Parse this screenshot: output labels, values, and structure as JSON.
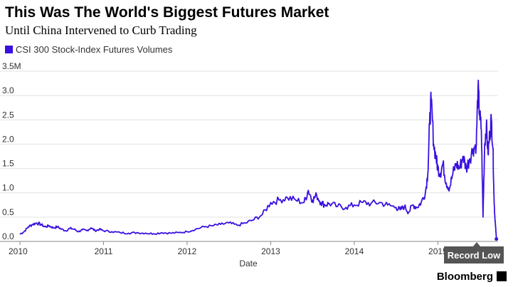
{
  "header": {
    "title": "This Was The World's Biggest Futures Market",
    "subtitle": "Until China Intervened to Curb Trading"
  },
  "annotation": {
    "label": "Record Low"
  },
  "source": {
    "label": "Bloomberg"
  },
  "chart_data": {
    "type": "line",
    "title": "This Was The World's Biggest Futures Market",
    "subtitle": "Until China Intervened to Curb Trading",
    "xlabel": "Date",
    "ylabel": "",
    "x_ticks": [
      "2010",
      "2011",
      "2012",
      "2013",
      "2014",
      "2015"
    ],
    "y_ticks": [
      "0.0",
      "0.5",
      "1.0",
      "1.5",
      "2.0",
      "2.5",
      "3.0",
      "3.5M"
    ],
    "xlim": [
      2010.0,
      2015.72
    ],
    "ylim": [
      0,
      3.5
    ],
    "grid": true,
    "legend": "top-left",
    "color": "#3a10e0",
    "series": [
      {
        "name": "CSI 300 Stock-Index Futures Volumes",
        "x": [
          2010.0,
          2010.05,
          2010.1,
          2010.15,
          2010.2,
          2010.25,
          2010.3,
          2010.35,
          2010.4,
          2010.45,
          2010.5,
          2010.55,
          2010.6,
          2010.65,
          2010.7,
          2010.75,
          2010.8,
          2010.85,
          2010.9,
          2010.95,
          2011.0,
          2011.1,
          2011.2,
          2011.3,
          2011.4,
          2011.5,
          2011.6,
          2011.7,
          2011.8,
          2011.9,
          2012.0,
          2012.1,
          2012.2,
          2012.3,
          2012.4,
          2012.5,
          2012.6,
          2012.7,
          2012.8,
          2012.9,
          2013.0,
          2013.1,
          2013.2,
          2013.3,
          2013.4,
          2013.45,
          2013.5,
          2013.55,
          2013.6,
          2013.65,
          2013.7,
          2013.8,
          2013.9,
          2014.0,
          2014.1,
          2014.2,
          2014.3,
          2014.4,
          2014.5,
          2014.55,
          2014.6,
          2014.65,
          2014.7,
          2014.75,
          2014.8,
          2014.85,
          2014.88,
          2014.9,
          2014.92,
          2014.95,
          2014.98,
          2015.0,
          2015.03,
          2015.06,
          2015.1,
          2015.14,
          2015.18,
          2015.22,
          2015.26,
          2015.3,
          2015.34,
          2015.38,
          2015.42,
          2015.46,
          2015.48,
          2015.5,
          2015.52,
          2015.54,
          2015.56,
          2015.58,
          2015.6,
          2015.62,
          2015.64,
          2015.66,
          2015.67,
          2015.68,
          2015.69,
          2015.7
        ],
        "y": [
          0.15,
          0.2,
          0.3,
          0.35,
          0.38,
          0.35,
          0.3,
          0.32,
          0.28,
          0.3,
          0.25,
          0.22,
          0.27,
          0.25,
          0.2,
          0.24,
          0.22,
          0.28,
          0.22,
          0.25,
          0.22,
          0.2,
          0.18,
          0.17,
          0.18,
          0.17,
          0.16,
          0.18,
          0.17,
          0.18,
          0.2,
          0.25,
          0.3,
          0.32,
          0.35,
          0.38,
          0.33,
          0.38,
          0.45,
          0.55,
          0.8,
          0.85,
          0.9,
          0.85,
          0.8,
          1.05,
          0.85,
          0.95,
          0.8,
          0.75,
          0.78,
          0.72,
          0.7,
          0.75,
          0.8,
          0.78,
          0.8,
          0.75,
          0.7,
          0.65,
          0.72,
          0.6,
          0.75,
          0.7,
          0.8,
          1.0,
          1.4,
          2.4,
          2.9,
          2.0,
          1.7,
          1.5,
          1.4,
          1.6,
          1.2,
          1.1,
          1.4,
          1.6,
          1.5,
          1.75,
          1.5,
          1.7,
          1.9,
          2.0,
          3.15,
          2.6,
          2.3,
          0.5,
          2.0,
          2.4,
          1.8,
          2.2,
          2.5,
          1.9,
          1.0,
          0.55,
          0.3,
          0.05
        ]
      }
    ]
  }
}
